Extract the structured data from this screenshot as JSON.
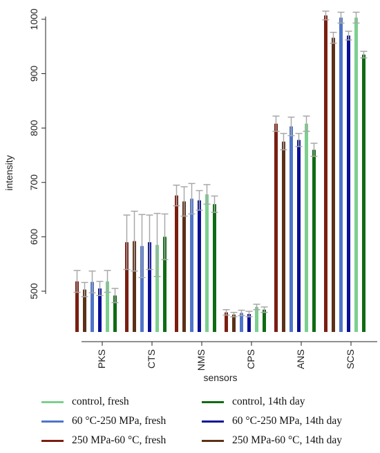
{
  "chart_data": {
    "type": "bar",
    "xlabel": "sensors",
    "ylabel": "intensity",
    "categories": [
      "PKS",
      "CTS",
      "NMS",
      "CPS",
      "ANS",
      "SCS"
    ],
    "yticks": [
      500,
      600,
      700,
      800,
      900,
      1000
    ],
    "ylim": [
      425,
      1010
    ],
    "grid": false,
    "legend_position": "bottom",
    "series": [
      {
        "name": "control, fresh",
        "color": "#7ccf8f",
        "values": [
          518,
          585,
          678,
          471,
          808,
          1003
        ],
        "errors": [
          20,
          58,
          18,
          5,
          14,
          10
        ]
      },
      {
        "name": "control, 14th day",
        "color": "#0f6b12",
        "values": [
          492,
          600,
          660,
          466,
          760,
          935
        ],
        "errors": [
          13,
          42,
          15,
          5,
          12,
          6
        ]
      },
      {
        "name": "60 °C-250 MPa, fresh",
        "color": "#4f74c9",
        "values": [
          517,
          583,
          670,
          460,
          803,
          1003
        ],
        "errors": [
          20,
          58,
          28,
          5,
          17,
          10
        ]
      },
      {
        "name": "60 °C-250 MPa, 14th day",
        "color": "#0a0f96",
        "values": [
          505,
          590,
          667,
          458,
          778,
          970
        ],
        "errors": [
          13,
          50,
          18,
          5,
          12,
          8
        ]
      },
      {
        "name": "250 MPa-60 °C, fresh",
        "color": "#7a1e10",
        "values": [
          518,
          590,
          676,
          461,
          808,
          1007
        ],
        "errors": [
          20,
          50,
          19,
          5,
          14,
          8
        ]
      },
      {
        "name": "250 MPa-60 °C, 14th day",
        "color": "#5c3118",
        "values": [
          503,
          592,
          665,
          457,
          775,
          966
        ],
        "errors": [
          13,
          55,
          27,
          4,
          15,
          10
        ]
      }
    ]
  },
  "legend": {
    "items": [
      {
        "label": "control, fresh",
        "color": "#7ccf8f"
      },
      {
        "label": "control, 14th day",
        "color": "#0f6b12"
      },
      {
        "label": "60 °C-250 MPa, fresh",
        "color": "#4f74c9"
      },
      {
        "label": "60 °C-250 MPa, 14th day",
        "color": "#0a0f96"
      },
      {
        "label": "250 MPa-60 °C, fresh",
        "color": "#7a1e10"
      },
      {
        "label": "250 MPa-60 °C, 14th day",
        "color": "#5c3118"
      }
    ]
  }
}
